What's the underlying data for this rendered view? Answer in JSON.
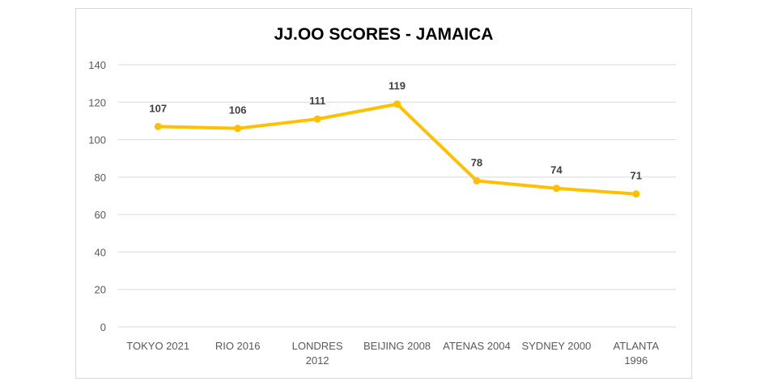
{
  "chart_data": {
    "type": "line",
    "title": "JJ.OO SCORES - JAMAICA",
    "categories": [
      [
        "TOKYO 2021"
      ],
      [
        "RIO 2016"
      ],
      [
        "LONDRES",
        "2012"
      ],
      [
        "BEIJING 2008"
      ],
      [
        "ATENAS 2004"
      ],
      [
        "SYDNEY 2000"
      ],
      [
        "ATLANTA",
        "1996"
      ]
    ],
    "series": [
      {
        "name": "Scores",
        "values": [
          107,
          106,
          111,
          119,
          78,
          74,
          71
        ]
      }
    ],
    "yticks": [
      0,
      20,
      40,
      60,
      80,
      100,
      120,
      140
    ],
    "ylim": [
      0,
      140
    ],
    "xlabel": "",
    "ylabel": "",
    "grid": true,
    "legend": "none",
    "colors": {
      "line": "#FFC000",
      "grid": "#D9D9D9",
      "border": "#D9D9D9"
    }
  }
}
